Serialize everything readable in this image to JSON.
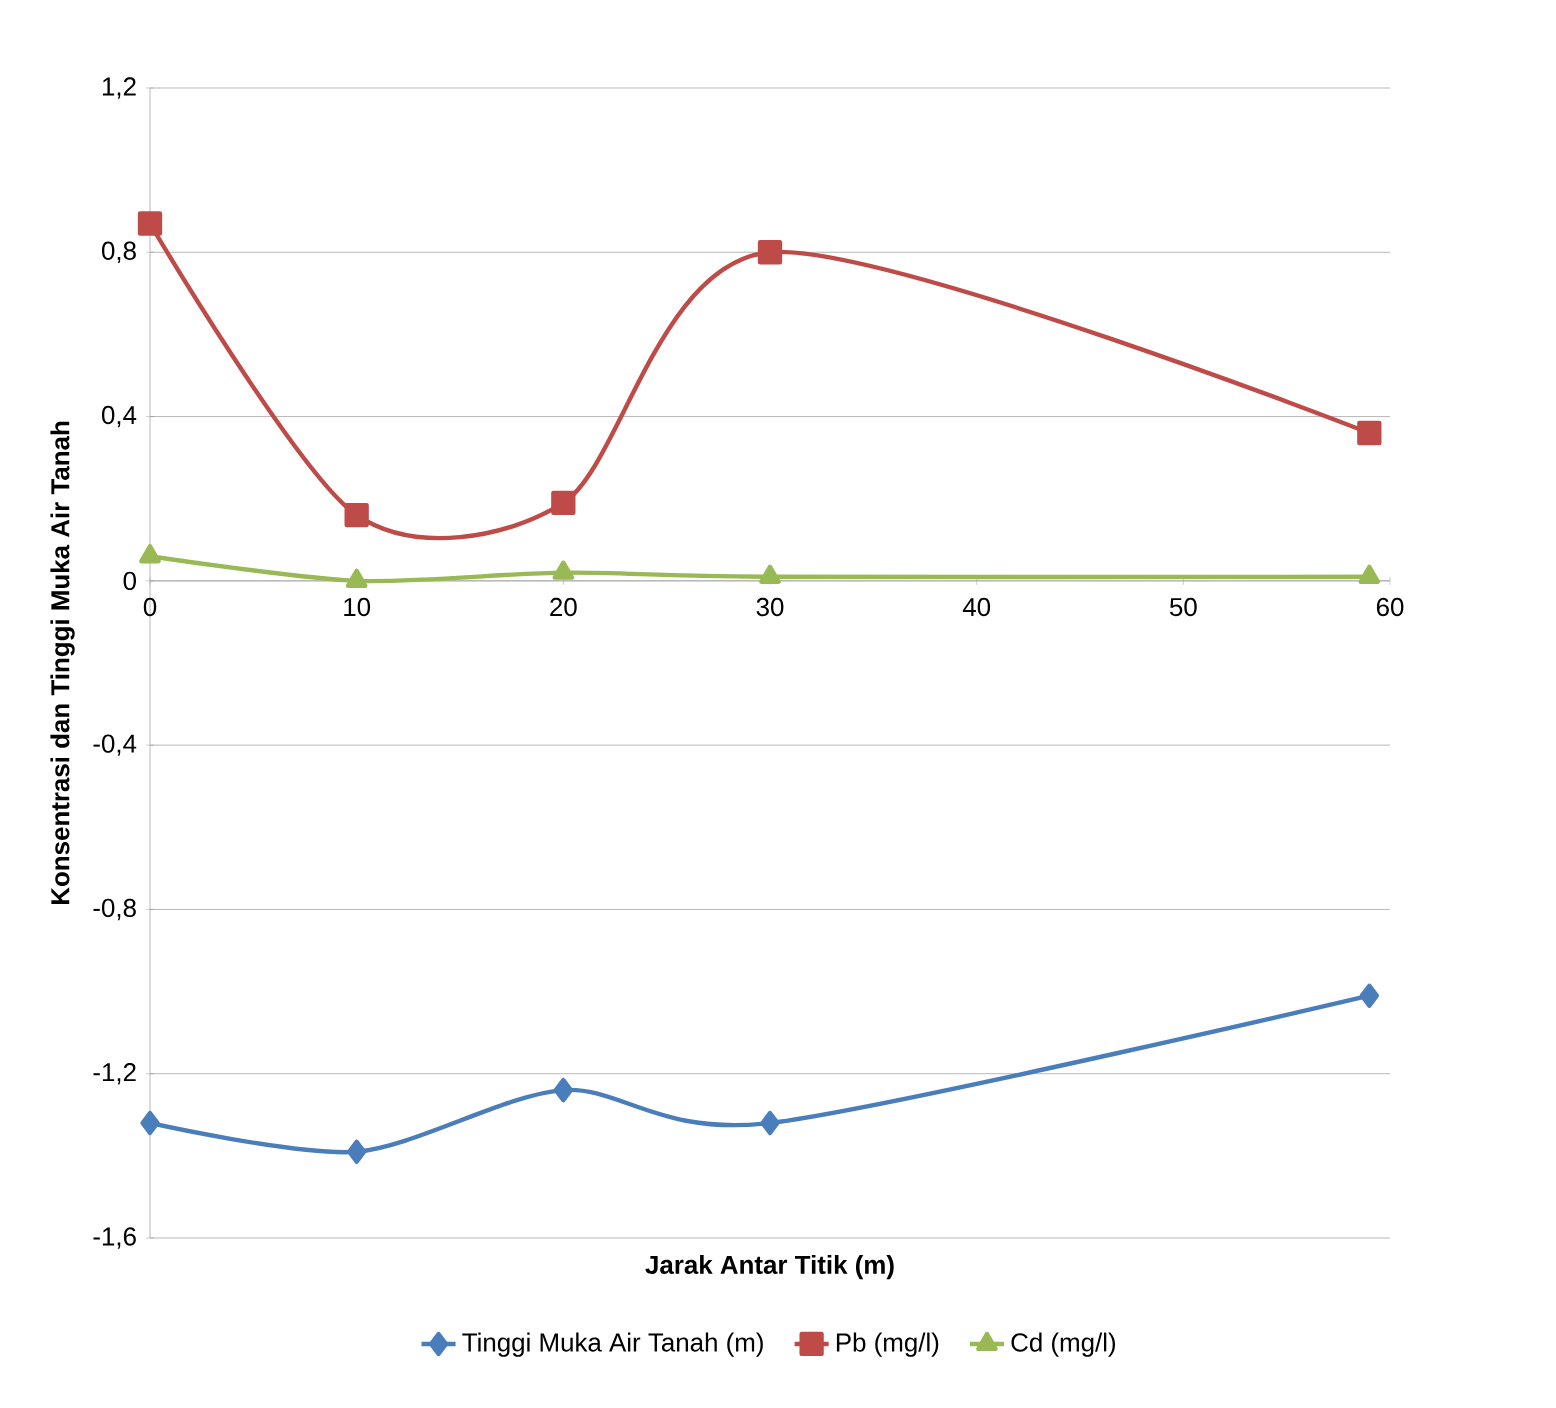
{
  "chart_data": {
    "type": "line",
    "xlabel": "Jarak Antar Titik (m)",
    "ylabel": "Konsentrasi dan Tinggi Muka Air Tanah",
    "x": [
      0,
      10,
      20,
      30,
      59
    ],
    "series": [
      {
        "name": "Tinggi Muka Air Tanah (m)",
        "color": "#4a7ebb",
        "marker": "diamond",
        "values": [
          -1.32,
          -1.39,
          -1.24,
          -1.32,
          -1.01
        ]
      },
      {
        "name": "Pb (mg/l)",
        "color": "#be4b48",
        "marker": "square",
        "values": [
          0.87,
          0.16,
          0.19,
          0.8,
          0.36
        ]
      },
      {
        "name": "Cd (mg/l)",
        "color": "#98b954",
        "marker": "triangle",
        "values": [
          0.06,
          0.0,
          0.02,
          0.01,
          0.01
        ]
      }
    ],
    "xlim": [
      0,
      60
    ],
    "xticks": [
      0,
      10,
      20,
      30,
      40,
      50,
      60
    ],
    "ylim": [
      -1.6,
      1.2
    ],
    "yticks": [
      {
        "value": -1.6,
        "label": "-1,6"
      },
      {
        "value": -1.2,
        "label": "-1,2"
      },
      {
        "value": -0.8,
        "label": "-0,8"
      },
      {
        "value": -0.4,
        "label": "-0,4"
      },
      {
        "value": 0,
        "label": "0"
      },
      {
        "value": 0.4,
        "label": "0,4"
      },
      {
        "value": 0.8,
        "label": "0,8"
      },
      {
        "value": 1.2,
        "label": "1,2"
      }
    ],
    "grid": "y",
    "legend": "bottom",
    "line_style": "solid"
  }
}
